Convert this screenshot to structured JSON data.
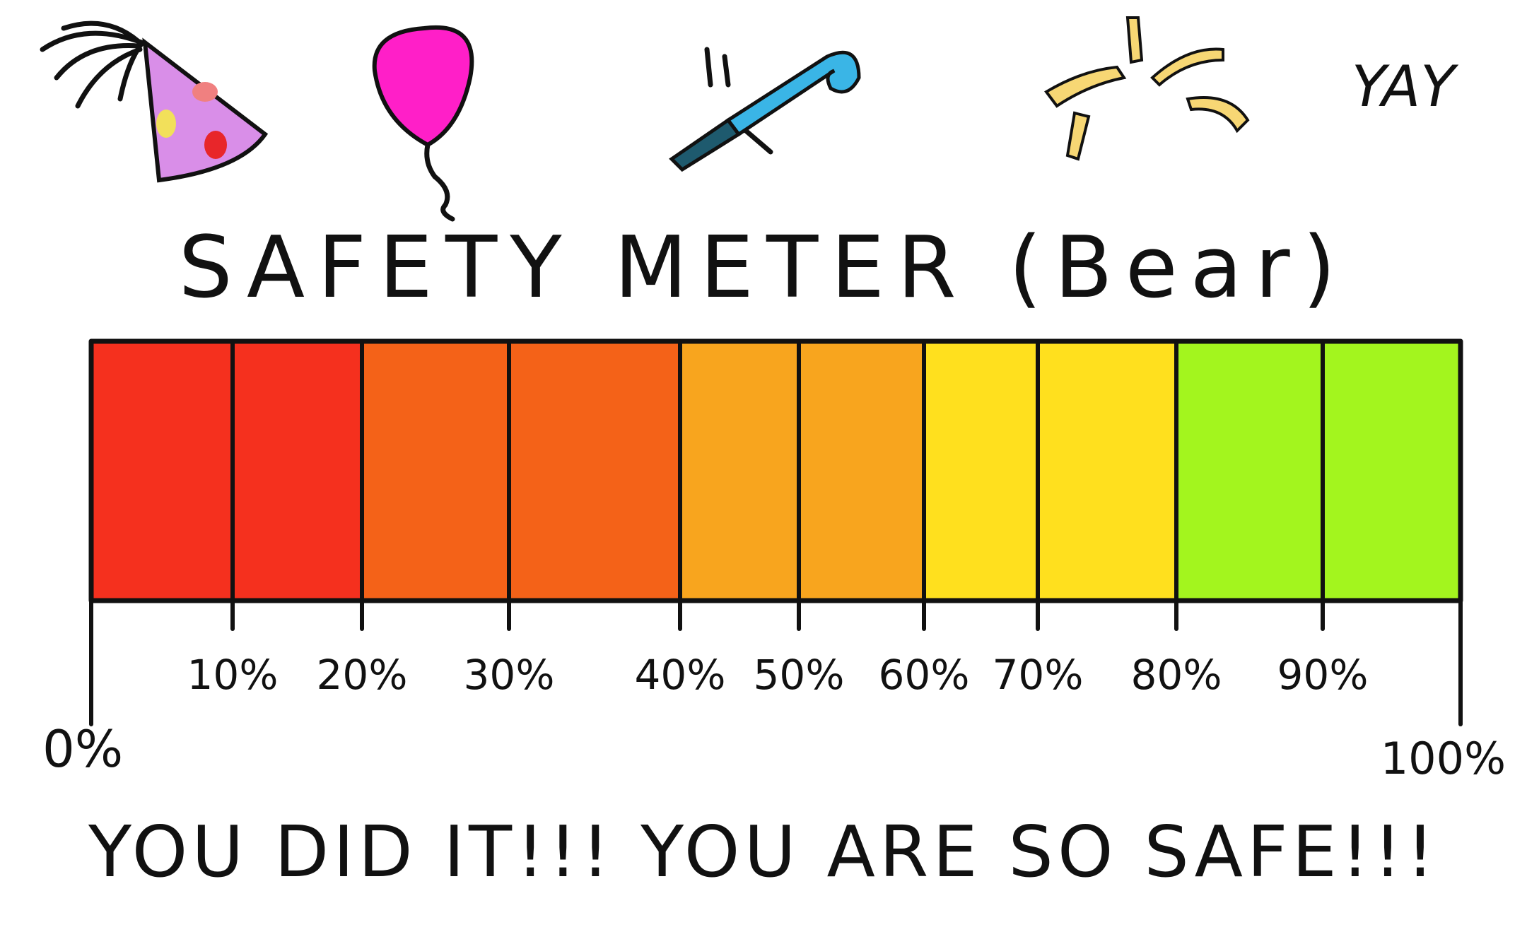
{
  "title": "SAFETY METER (Bear)",
  "exclamation": "YAY",
  "meter": {
    "ticks": [
      "0%",
      "10%",
      "20%",
      "30%",
      "40%",
      "50%",
      "60%",
      "70%",
      "80%",
      "90%",
      "100%"
    ]
  },
  "message": "YOU DID IT!!! YOU ARE SO SAFE!!!"
}
